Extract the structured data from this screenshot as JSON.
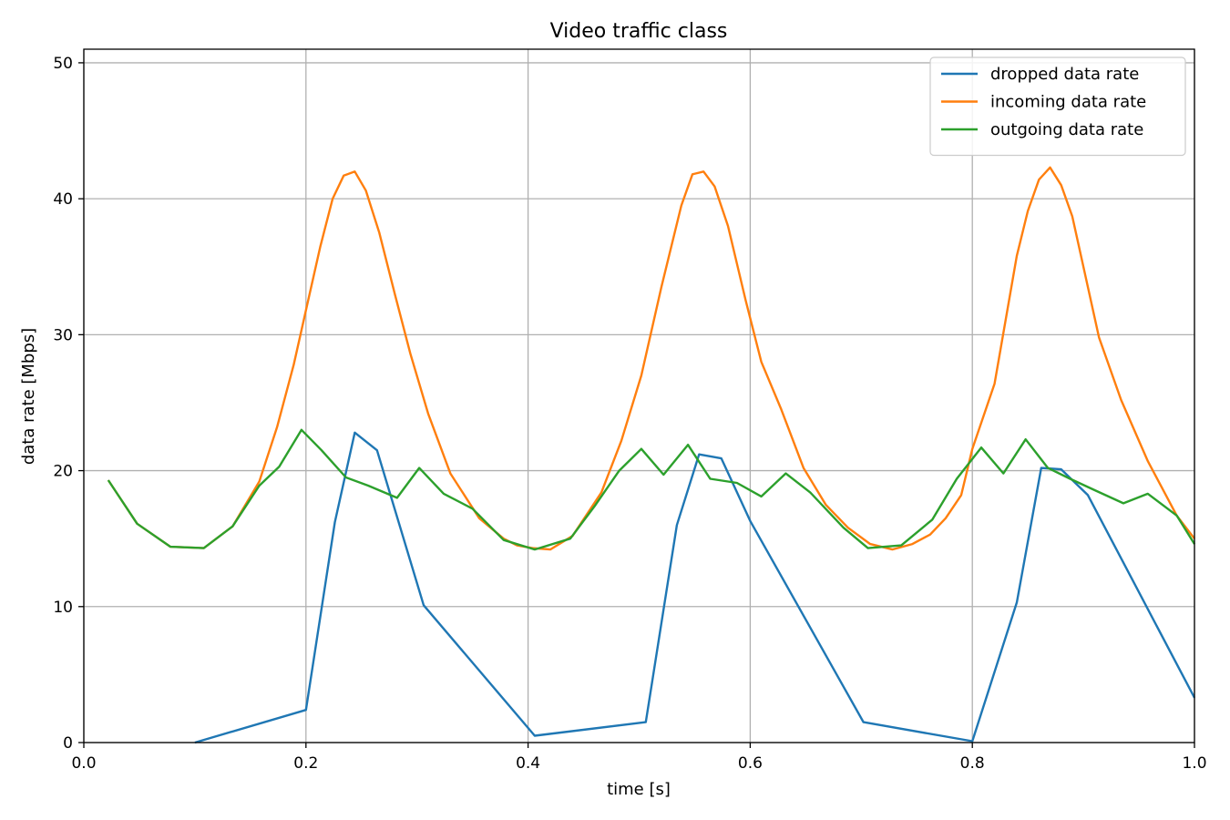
{
  "chart_data": {
    "type": "line",
    "title": "Video traffic class",
    "xlabel": "time [s]",
    "ylabel": "data rate [Mbps]",
    "xlim": [
      0.0,
      1.0
    ],
    "ylim": [
      0,
      51
    ],
    "xticks": [
      0.0,
      0.2,
      0.4,
      0.6,
      0.8,
      1.0
    ],
    "xtick_labels": [
      "0.0",
      "0.2",
      "0.4",
      "0.6",
      "0.8",
      "1.0"
    ],
    "yticks": [
      0,
      10,
      20,
      30,
      40,
      50
    ],
    "ytick_labels": [
      "0",
      "10",
      "20",
      "30",
      "40",
      "50"
    ],
    "grid": true,
    "legend_position": "top-right",
    "series": [
      {
        "name": "dropped data rate",
        "color": "#1f77b4",
        "points": [
          [
            0.1,
            0.0
          ],
          [
            0.2,
            2.4
          ],
          [
            0.226,
            16.2
          ],
          [
            0.244,
            22.8
          ],
          [
            0.264,
            21.5
          ],
          [
            0.306,
            10.1
          ],
          [
            0.406,
            0.5
          ],
          [
            0.506,
            1.5
          ],
          [
            0.534,
            16.0
          ],
          [
            0.554,
            21.2
          ],
          [
            0.574,
            20.9
          ],
          [
            0.6,
            16.3
          ],
          [
            0.702,
            1.5
          ],
          [
            0.8,
            0.1
          ],
          [
            0.84,
            10.3
          ],
          [
            0.862,
            20.2
          ],
          [
            0.88,
            20.1
          ],
          [
            0.904,
            18.2
          ],
          [
            1.0,
            3.3
          ]
        ]
      },
      {
        "name": "incoming data rate",
        "color": "#ff7f0e",
        "points": [
          [
            0.022,
            19.3
          ],
          [
            0.048,
            16.1
          ],
          [
            0.078,
            14.4
          ],
          [
            0.108,
            14.3
          ],
          [
            0.134,
            15.9
          ],
          [
            0.158,
            19.2
          ],
          [
            0.174,
            23.2
          ],
          [
            0.189,
            27.8
          ],
          [
            0.2,
            31.8
          ],
          [
            0.213,
            36.5
          ],
          [
            0.224,
            40.0
          ],
          [
            0.234,
            41.7
          ],
          [
            0.244,
            42.0
          ],
          [
            0.254,
            40.6
          ],
          [
            0.266,
            37.5
          ],
          [
            0.28,
            33.0
          ],
          [
            0.294,
            28.6
          ],
          [
            0.31,
            24.2
          ],
          [
            0.33,
            19.8
          ],
          [
            0.356,
            16.5
          ],
          [
            0.378,
            15.0
          ],
          [
            0.39,
            14.5
          ],
          [
            0.404,
            14.3
          ],
          [
            0.42,
            14.2
          ],
          [
            0.44,
            15.2
          ],
          [
            0.466,
            18.4
          ],
          [
            0.484,
            22.2
          ],
          [
            0.502,
            27.0
          ],
          [
            0.52,
            33.5
          ],
          [
            0.538,
            39.5
          ],
          [
            0.548,
            41.8
          ],
          [
            0.558,
            42.0
          ],
          [
            0.568,
            40.9
          ],
          [
            0.58,
            38.0
          ],
          [
            0.596,
            32.5
          ],
          [
            0.61,
            28.0
          ],
          [
            0.628,
            24.5
          ],
          [
            0.648,
            20.2
          ],
          [
            0.668,
            17.5
          ],
          [
            0.688,
            15.8
          ],
          [
            0.708,
            14.6
          ],
          [
            0.728,
            14.2
          ],
          [
            0.746,
            14.6
          ],
          [
            0.762,
            15.3
          ],
          [
            0.776,
            16.5
          ],
          [
            0.79,
            18.2
          ],
          [
            0.8,
            21.6
          ],
          [
            0.82,
            26.4
          ],
          [
            0.84,
            35.8
          ],
          [
            0.85,
            39.1
          ],
          [
            0.86,
            41.4
          ],
          [
            0.87,
            42.3
          ],
          [
            0.88,
            41.0
          ],
          [
            0.89,
            38.7
          ],
          [
            0.9,
            35.0
          ],
          [
            0.914,
            29.8
          ],
          [
            0.934,
            25.2
          ],
          [
            0.958,
            20.7
          ],
          [
            0.984,
            16.7
          ],
          [
            1.0,
            15.0
          ]
        ]
      },
      {
        "name": "outgoing data rate",
        "color": "#2ca02c",
        "points": [
          [
            0.022,
            19.3
          ],
          [
            0.048,
            16.1
          ],
          [
            0.078,
            14.4
          ],
          [
            0.108,
            14.3
          ],
          [
            0.134,
            15.9
          ],
          [
            0.158,
            18.9
          ],
          [
            0.176,
            20.3
          ],
          [
            0.196,
            23.0
          ],
          [
            0.214,
            21.5
          ],
          [
            0.236,
            19.5
          ],
          [
            0.256,
            18.9
          ],
          [
            0.282,
            18.0
          ],
          [
            0.302,
            20.2
          ],
          [
            0.324,
            18.3
          ],
          [
            0.35,
            17.2
          ],
          [
            0.378,
            14.9
          ],
          [
            0.406,
            14.2
          ],
          [
            0.438,
            15.0
          ],
          [
            0.46,
            17.4
          ],
          [
            0.482,
            20.0
          ],
          [
            0.502,
            21.6
          ],
          [
            0.522,
            19.7
          ],
          [
            0.544,
            21.9
          ],
          [
            0.564,
            19.4
          ],
          [
            0.588,
            19.1
          ],
          [
            0.61,
            18.1
          ],
          [
            0.632,
            19.8
          ],
          [
            0.654,
            18.4
          ],
          [
            0.684,
            15.8
          ],
          [
            0.706,
            14.3
          ],
          [
            0.736,
            14.5
          ],
          [
            0.764,
            16.4
          ],
          [
            0.786,
            19.4
          ],
          [
            0.808,
            21.7
          ],
          [
            0.828,
            19.8
          ],
          [
            0.848,
            22.3
          ],
          [
            0.868,
            20.2
          ],
          [
            0.888,
            19.4
          ],
          [
            0.912,
            18.5
          ],
          [
            0.936,
            17.6
          ],
          [
            0.958,
            18.3
          ],
          [
            0.984,
            16.7
          ],
          [
            1.0,
            14.6
          ]
        ]
      }
    ]
  }
}
